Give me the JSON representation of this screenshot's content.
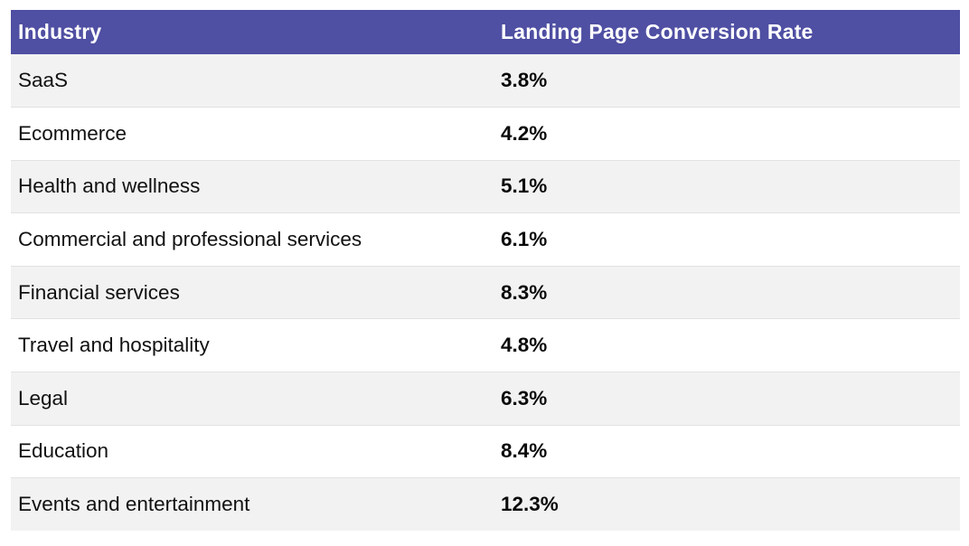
{
  "table": {
    "headers": {
      "industry": "Industry",
      "rate": "Landing Page Conversion Rate"
    },
    "rows": [
      {
        "industry": "SaaS",
        "rate": "3.8%"
      },
      {
        "industry": "Ecommerce",
        "rate": "4.2%"
      },
      {
        "industry": "Health and wellness",
        "rate": "5.1%"
      },
      {
        "industry": "Commercial and professional services",
        "rate": "6.1%"
      },
      {
        "industry": "Financial services",
        "rate": "8.3%"
      },
      {
        "industry": "Travel and hospitality",
        "rate": "4.8%"
      },
      {
        "industry": "Legal",
        "rate": "6.3%"
      },
      {
        "industry": "Education",
        "rate": "8.4%"
      },
      {
        "industry": "Events and entertainment",
        "rate": "12.3%"
      }
    ]
  },
  "colors": {
    "header_bg": "#4f4fa3",
    "header_text": "#ffffff",
    "stripe_bg": "#f2f2f2",
    "row_bg": "#ffffff"
  }
}
